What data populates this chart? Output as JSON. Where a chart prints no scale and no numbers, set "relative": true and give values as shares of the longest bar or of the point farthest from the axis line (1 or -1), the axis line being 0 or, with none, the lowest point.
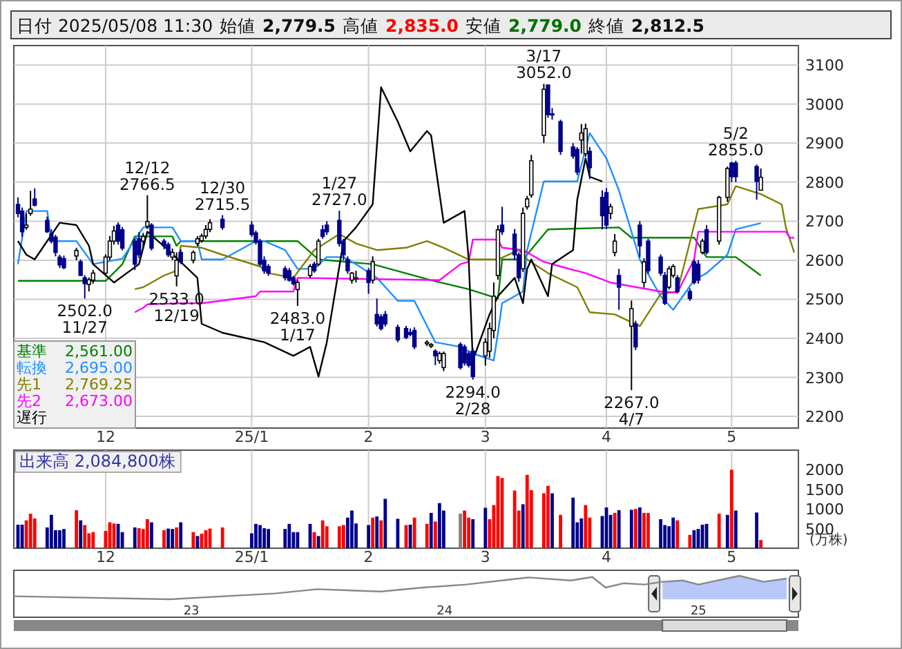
{
  "chart_data": [
    {
      "type": "candlestick",
      "xlim": [
        "2024-11-10",
        "2025-05-17"
      ],
      "ylim": [
        2170,
        3150
      ],
      "grid": true,
      "legend": "bottom left",
      "xticks": [
        {
          "value": "2024-12-02",
          "label": "12"
        },
        {
          "value": "2025-01-06",
          "label": "25/1"
        },
        {
          "value": "2025-02-03",
          "label": "2"
        },
        {
          "value": "2025-03-03",
          "label": "3"
        },
        {
          "value": "2025-04-01",
          "label": "4"
        },
        {
          "value": "2025-05-01",
          "label": "5"
        }
      ],
      "yticks": [
        2200,
        2300,
        2400,
        2500,
        2600,
        2700,
        2800,
        2900,
        3000,
        3100
      ],
      "x": [
        "2024-11-11",
        "2024-11-12",
        "2024-11-13",
        "2024-11-14",
        "2024-11-15",
        "2024-11-18",
        "2024-11-19",
        "2024-11-20",
        "2024-11-21",
        "2024-11-22",
        "2024-11-25",
        "2024-11-26",
        "2024-11-27",
        "2024-11-28",
        "2024-11-29",
        "2024-12-02",
        "2024-12-03",
        "2024-12-04",
        "2024-12-05",
        "2024-12-06",
        "2024-12-09",
        "2024-12-10",
        "2024-12-11",
        "2024-12-12",
        "2024-12-13",
        "2024-12-16",
        "2024-12-17",
        "2024-12-18",
        "2024-12-19",
        "2024-12-20",
        "2024-12-23",
        "2024-12-24",
        "2024-12-25",
        "2024-12-26",
        "2024-12-27",
        "2024-12-30",
        "2025-01-06",
        "2025-01-07",
        "2025-01-08",
        "2025-01-09",
        "2025-01-10",
        "2025-01-14",
        "2025-01-15",
        "2025-01-16",
        "2025-01-17",
        "2025-01-20",
        "2025-01-21",
        "2025-01-22",
        "2025-01-23",
        "2025-01-24",
        "2025-01-27",
        "2025-01-28",
        "2025-01-29",
        "2025-01-30",
        "2025-01-31",
        "2025-02-03",
        "2025-02-04",
        "2025-02-05",
        "2025-02-06",
        "2025-02-07",
        "2025-02-10",
        "2025-02-12",
        "2025-02-13",
        "2025-02-14",
        "2025-02-17",
        "2025-02-18",
        "2025-02-19",
        "2025-02-20",
        "2025-02-21",
        "2025-02-25",
        "2025-02-26",
        "2025-02-27",
        "2025-02-28",
        "2025-03-03",
        "2025-03-04",
        "2025-03-05",
        "2025-03-06",
        "2025-03-07",
        "2025-03-10",
        "2025-03-11",
        "2025-03-12",
        "2025-03-13",
        "2025-03-14",
        "2025-03-17",
        "2025-03-18",
        "2025-03-19",
        "2025-03-21",
        "2025-03-24",
        "2025-03-25",
        "2025-03-26",
        "2025-03-27",
        "2025-03-28",
        "2025-03-31",
        "2025-04-01",
        "2025-04-02",
        "2025-04-03",
        "2025-04-04",
        "2025-04-07",
        "2025-04-08",
        "2025-04-09",
        "2025-04-10",
        "2025-04-11",
        "2025-04-14",
        "2025-04-15",
        "2025-04-16",
        "2025-04-17",
        "2025-04-18",
        "2025-04-21",
        "2025-04-22",
        "2025-04-23",
        "2025-04-24",
        "2025-04-25",
        "2025-04-28",
        "2025-04-30",
        "2025-05-01",
        "2025-05-02",
        "2025-05-07",
        "2025-05-08"
      ],
      "ohlc": [
        [
          2743,
          2761,
          2710,
          2720
        ],
        [
          2726,
          2735,
          2660,
          2673
        ],
        [
          2684,
          2720,
          2678,
          2690
        ],
        [
          2720,
          2778,
          2714,
          2731
        ],
        [
          2757,
          2784,
          2738,
          2741
        ],
        [
          2702,
          2712,
          2670,
          2673
        ],
        [
          2667,
          2679,
          2643,
          2649
        ],
        [
          2659,
          2665,
          2610,
          2620
        ],
        [
          2608,
          2614,
          2580,
          2588
        ],
        [
          2604,
          2612,
          2577,
          2581
        ],
        [
          2611,
          2632,
          2600,
          2625
        ],
        [
          2596,
          2602,
          2560,
          2561
        ],
        [
          2555,
          2562,
          2502,
          2540
        ],
        [
          2538,
          2556,
          2520,
          2550
        ],
        [
          2549,
          2575,
          2540,
          2567
        ],
        [
          2567,
          2615,
          2560,
          2608
        ],
        [
          2608,
          2662,
          2600,
          2649
        ],
        [
          2649,
          2688,
          2640,
          2675
        ],
        [
          2690,
          2697,
          2640,
          2649
        ],
        [
          2678,
          2685,
          2625,
          2631
        ],
        [
          2649,
          2655,
          2575,
          2590
        ],
        [
          2655,
          2672,
          2605,
          2614
        ],
        [
          2649,
          2670,
          2630,
          2661
        ],
        [
          2687,
          2766.5,
          2680,
          2699
        ],
        [
          2690,
          2695,
          2625,
          2631
        ],
        [
          2649,
          2655,
          2628,
          2637
        ],
        [
          2640,
          2646,
          2608,
          2614
        ],
        [
          2608,
          2630,
          2600,
          2620
        ],
        [
          2560,
          2620,
          2533,
          2600
        ],
        [
          2620,
          2628,
          2590,
          2596
        ],
        [
          2600,
          2625,
          2592,
          2620
        ],
        [
          2643,
          2662,
          2636,
          2655
        ],
        [
          2650,
          2668,
          2645,
          2662
        ],
        [
          2662,
          2690,
          2655,
          2679
        ],
        [
          2679,
          2705,
          2672,
          2696
        ],
        [
          2705,
          2715.5,
          2678,
          2684
        ],
        [
          2690,
          2700,
          2660,
          2666
        ],
        [
          2670,
          2676,
          2640,
          2646
        ],
        [
          2649,
          2655,
          2585,
          2590
        ],
        [
          2600,
          2610,
          2565,
          2573
        ],
        [
          2584,
          2590,
          2560,
          2567
        ],
        [
          2578,
          2585,
          2548,
          2555
        ],
        [
          2573,
          2580,
          2545,
          2549
        ],
        [
          2555,
          2560,
          2535,
          2540
        ],
        [
          2525,
          2550,
          2483,
          2543
        ],
        [
          2561,
          2590,
          2555,
          2584
        ],
        [
          2590,
          2596,
          2568,
          2573
        ],
        [
          2590,
          2655,
          2585,
          2649
        ],
        [
          2678,
          2690,
          2655,
          2661
        ],
        [
          2690,
          2700,
          2665,
          2673
        ],
        [
          2702,
          2727,
          2635,
          2643
        ],
        [
          2649,
          2655,
          2600,
          2614
        ],
        [
          2602,
          2610,
          2565,
          2573
        ],
        [
          2549,
          2570,
          2540,
          2567
        ],
        [
          2552,
          2573,
          2543,
          2555
        ],
        [
          2573,
          2580,
          2514,
          2543
        ],
        [
          2549,
          2610,
          2540,
          2596
        ],
        [
          2461,
          2502,
          2430,
          2437
        ],
        [
          2455,
          2462,
          2420,
          2425
        ],
        [
          2461,
          2470,
          2430,
          2437
        ],
        [
          2428,
          2435,
          2390,
          2396
        ],
        [
          2425,
          2432,
          2398,
          2402
        ],
        [
          2415,
          2425,
          2405,
          2410
        ],
        [
          2420,
          2428,
          2372,
          2378
        ],
        [
          2386,
          2395,
          2380,
          2390
        ],
        [
          2380,
          2388,
          2375,
          2384
        ],
        [
          2367,
          2372,
          2331,
          2355
        ],
        [
          2343,
          2366,
          2335,
          2361
        ],
        [
          2325,
          2366,
          2316,
          2361
        ],
        [
          2384,
          2390,
          2320,
          2325
        ],
        [
          2378,
          2384,
          2330,
          2337
        ],
        [
          2361,
          2367,
          2325,
          2331
        ],
        [
          2367,
          2375,
          2294,
          2302
        ],
        [
          2355,
          2400,
          2330,
          2390
        ],
        [
          2367,
          2440,
          2350,
          2425
        ],
        [
          2420,
          2543,
          2400,
          2508
        ],
        [
          2561,
          2690,
          2550,
          2678
        ],
        [
          2690,
          2737,
          2665,
          2673
        ],
        [
          2667,
          2680,
          2600,
          2614
        ],
        [
          2614,
          2620,
          2545,
          2555
        ],
        [
          2578,
          2735,
          2570,
          2720
        ],
        [
          2737,
          2765,
          2730,
          2757
        ],
        [
          2767,
          2870,
          2760,
          2855
        ],
        [
          2920,
          3052,
          2900,
          3038
        ],
        [
          3049,
          3049,
          2965,
          2973
        ],
        [
          2975,
          2990,
          2960,
          2973
        ],
        [
          2955,
          2960,
          2870,
          2879
        ],
        [
          2890,
          2900,
          2860,
          2867
        ],
        [
          2884,
          2890,
          2818,
          2826
        ],
        [
          2908,
          2949,
          2873,
          2926
        ],
        [
          2873,
          2950,
          2865,
          2937
        ],
        [
          2879,
          2890,
          2808,
          2837
        ],
        [
          2761,
          2779,
          2679,
          2714
        ],
        [
          2773,
          2785,
          2680,
          2690
        ],
        [
          2720,
          2745,
          2705,
          2737
        ],
        [
          2620,
          2667,
          2610,
          2649
        ],
        [
          2561,
          2578,
          2473,
          2531
        ],
        [
          2431,
          2497,
          2267,
          2476
        ],
        [
          2437,
          2445,
          2370,
          2378
        ],
        [
          2690,
          2700,
          2608,
          2637
        ],
        [
          2543,
          2605,
          2530,
          2596
        ],
        [
          2649,
          2655,
          2565,
          2573
        ],
        [
          2608,
          2615,
          2560,
          2567
        ],
        [
          2561,
          2570,
          2485,
          2490
        ],
        [
          2531,
          2585,
          2525,
          2578
        ],
        [
          2561,
          2590,
          2555,
          2584
        ],
        [
          2555,
          2562,
          2515,
          2520
        ],
        [
          2520,
          2528,
          2496,
          2502
        ],
        [
          2596,
          2602,
          2538,
          2543
        ],
        [
          2590,
          2600,
          2540,
          2549
        ],
        [
          2620,
          2655,
          2615,
          2649
        ],
        [
          2678,
          2690,
          2615,
          2620
        ],
        [
          2649,
          2765,
          2640,
          2761
        ],
        [
          2761,
          2840,
          2750,
          2835
        ],
        [
          2849,
          2852,
          2800,
          2814
        ],
        [
          2849,
          2855,
          2800,
          2814
        ],
        [
          2840,
          2845,
          2755,
          2802
        ],
        [
          2779.5,
          2835,
          2779,
          2812.5
        ]
      ],
      "series": [
        {
          "type": "line",
          "name": "基準",
          "color": "#008000",
          "x": [
            "2024-11-11",
            "2024-12-02",
            "2024-12-06",
            "2024-12-09",
            "2024-12-18",
            "2024-12-19",
            "2024-12-20",
            "2025-01-17",
            "2025-01-22",
            "2025-02-04",
            "2025-02-18",
            "2025-02-27",
            "2025-03-06",
            "2025-03-07",
            "2025-03-12",
            "2025-03-18",
            "2025-04-04",
            "2025-04-07",
            "2025-04-22",
            "2025-04-25",
            "2025-05-02",
            "2025-05-08"
          ],
          "values": [
            2547,
            2547,
            2590,
            2661,
            2661,
            2637,
            2649,
            2649,
            2602,
            2590,
            2549,
            2526,
            2502,
            2602,
            2602,
            2679,
            2684,
            2658,
            2658,
            2608,
            2608,
            2561
          ]
        },
        {
          "type": "line",
          "name": "転換",
          "color": "#1e90ff",
          "x": [
            "2024-11-11",
            "2024-11-13",
            "2024-11-18",
            "2024-11-19",
            "2024-11-25",
            "2024-11-29",
            "2024-12-06",
            "2024-12-11",
            "2024-12-18",
            "2024-12-20",
            "2024-12-24",
            "2024-12-25",
            "2024-12-30",
            "2025-01-07",
            "2025-01-09",
            "2025-01-14",
            "2025-01-17",
            "2025-01-21",
            "2025-01-24",
            "2025-01-28",
            "2025-01-31",
            "2025-02-05",
            "2025-02-10",
            "2025-02-14",
            "2025-02-19",
            "2025-02-25",
            "2025-02-28",
            "2025-03-05",
            "2025-03-06",
            "2025-03-07",
            "2025-03-12",
            "2025-03-13",
            "2025-03-17",
            "2025-03-25",
            "2025-03-28",
            "2025-04-01",
            "2025-04-04",
            "2025-04-09",
            "2025-04-14",
            "2025-04-17",
            "2025-04-22",
            "2025-04-25",
            "2025-04-30",
            "2025-05-02",
            "2025-05-08"
          ],
          "values": [
            2590,
            2726,
            2726,
            2649,
            2649,
            2590,
            2604,
            2684,
            2684,
            2649,
            2649,
            2602,
            2602,
            2649,
            2649,
            2626,
            2578,
            2578,
            2608,
            2608,
            2590,
            2555,
            2496,
            2496,
            2390,
            2378,
            2361,
            2343,
            2414,
            2490,
            2520,
            2626,
            2802,
            2802,
            2926,
            2861,
            2779,
            2602,
            2508,
            2473,
            2549,
            2567,
            2614,
            2679,
            2695
          ]
        },
        {
          "type": "line",
          "name": "先1",
          "color": "#808000",
          "x": [
            "2024-12-09",
            "2024-12-11",
            "2024-12-16",
            "2024-12-19",
            "2024-12-20",
            "2024-12-25",
            "2024-12-30",
            "2025-01-08",
            "2025-01-10",
            "2025-01-16",
            "2025-01-21",
            "2025-01-27",
            "2025-01-31",
            "2025-02-05",
            "2025-02-12",
            "2025-02-17",
            "2025-02-21",
            "2025-02-27",
            "2025-03-06",
            "2025-03-11",
            "2025-03-13",
            "2025-03-18",
            "2025-03-25",
            "2025-03-28",
            "2025-04-03",
            "2025-04-09",
            "2025-04-14",
            "2025-04-18",
            "2025-04-23",
            "2025-04-30",
            "2025-05-02",
            "2025-05-08",
            "2025-05-13",
            "2025-05-14",
            "2025-05-16"
          ],
          "values": [
            2526,
            2531,
            2561,
            2573,
            2637,
            2632,
            2614,
            2584,
            2567,
            2555,
            2626,
            2667,
            2643,
            2626,
            2632,
            2649,
            2632,
            2602,
            2602,
            2626,
            2602,
            2567,
            2531,
            2467,
            2461,
            2431,
            2514,
            2520,
            2731,
            2743,
            2790,
            2769.25,
            2743,
            2684,
            2620
          ]
        },
        {
          "type": "line",
          "name": "先2",
          "color": "#ff00ff",
          "x": [
            "2024-12-09",
            "2024-12-11",
            "2024-12-12",
            "2024-12-20",
            "2024-12-25",
            "2025-01-07",
            "2025-01-08",
            "2025-01-16",
            "2025-01-17",
            "2025-02-20",
            "2025-02-25",
            "2025-02-27",
            "2025-02-28",
            "2025-03-06",
            "2025-03-07",
            "2025-03-12",
            "2025-03-17",
            "2025-03-21",
            "2025-03-27",
            "2025-04-02",
            "2025-04-14",
            "2025-04-18",
            "2025-04-22",
            "2025-04-23",
            "2025-05-08",
            "2025-05-14",
            "2025-05-15",
            "2025-05-16"
          ],
          "values": [
            2467,
            2478,
            2487,
            2490,
            2490,
            2508,
            2520,
            2520,
            2555,
            2549,
            2590,
            2596,
            2653,
            2653,
            2632,
            2626,
            2596,
            2584,
            2567,
            2543,
            2520,
            2517,
            2602,
            2673,
            2673,
            2673,
            2658,
            2658
          ]
        },
        {
          "type": "line",
          "name": "遅行",
          "color": "#000000",
          "x": [
            "2024-11-11",
            "2024-11-13",
            "2024-11-15",
            "2024-11-21",
            "2024-11-25",
            "2024-11-28",
            "2024-11-29",
            "2024-12-04",
            "2024-12-10",
            "2024-12-12",
            "2024-12-17",
            "2024-12-24",
            "2024-12-25",
            "2024-12-30",
            "2025-01-09",
            "2025-01-16",
            "2025-01-20",
            "2025-01-22",
            "2025-01-24",
            "2025-01-28",
            "2025-01-31",
            "2025-02-04",
            "2025-02-06",
            "2025-02-10",
            "2025-02-13",
            "2025-02-17",
            "2025-02-18",
            "2025-02-21",
            "2025-02-26",
            "2025-02-27",
            "2025-02-28",
            "2025-03-04",
            "2025-03-06",
            "2025-03-10",
            "2025-03-12",
            "2025-03-13",
            "2025-03-14",
            "2025-03-18",
            "2025-03-19",
            "2025-03-24",
            "2025-03-25",
            "2025-03-27",
            "2025-03-28",
            "2025-03-31"
          ],
          "values": [
            2649,
            2614,
            2602,
            2696,
            2690,
            2637,
            2590,
            2543,
            2590,
            2673,
            2626,
            2555,
            2437,
            2414,
            2390,
            2355,
            2378,
            2302,
            2390,
            2649,
            2684,
            2743,
            3043,
            2955,
            2879,
            2931,
            2920,
            2696,
            2726,
            2602,
            2343,
            2461,
            2508,
            2555,
            2490,
            2578,
            2602,
            2508,
            2590,
            2626,
            2755,
            2861,
            2814,
            2802
          ]
        }
      ],
      "annotations": [
        "日付 2025/05/08 11:30",
        "始値",
        "2,779.5",
        "高値",
        "2,835.0",
        "安値",
        "2,779.0",
        "終値",
        "2,812.5",
        "2,561.00",
        "2,695.00",
        "2,769.25",
        "2,673.00",
        {
          "text": "2502.0 11/27",
          "x": "2024-11-27",
          "y": 2502
        },
        {
          "text": "12/12 2766.5",
          "x": "2024-12-12",
          "y": 2766.5
        },
        {
          "text": "2533.0 12/19",
          "x": "2024-12-19",
          "y": 2533
        },
        {
          "text": "12/30 2715.5",
          "x": "2024-12-30",
          "y": 2715.5
        },
        {
          "text": "2483.0 1/17",
          "x": "2025-01-17",
          "y": 2483
        },
        {
          "text": "1/27 2727.0",
          "x": "2025-01-27",
          "y": 2727
        },
        {
          "text": "2294.0 2/28",
          "x": "2025-02-28",
          "y": 2294
        },
        {
          "text": "3/17 3052.0",
          "x": "2025-03-17",
          "y": 3052
        },
        {
          "text": "2267.0 4/7",
          "x": "2025-04-07",
          "y": 2267
        },
        {
          "text": "5/2 2855.0",
          "x": "2025-05-02",
          "y": 2855
        }
      ]
    },
    {
      "type": "bar",
      "title": "出来高 2,084,800株",
      "ylabel": "(万株)",
      "grid": "x",
      "xlim": [
        "2024-11-10",
        "2025-05-17"
      ],
      "ylim": [
        0,
        2500
      ],
      "yticks": [
        500,
        1000,
        1500,
        2000
      ],
      "xticks": [
        {
          "value": "2024-12-02",
          "label": "12"
        },
        {
          "value": "2025-01-06",
          "label": "25/1"
        },
        {
          "value": "2025-02-03",
          "label": "2"
        },
        {
          "value": "2025-03-03",
          "label": "3"
        },
        {
          "value": "2025-04-01",
          "label": "4"
        },
        {
          "value": "2025-05-01",
          "label": "5"
        }
      ],
      "x": [
        "2024-11-11",
        "2024-11-12",
        "2024-11-13",
        "2024-11-14",
        "2024-11-15",
        "2024-11-18",
        "2024-11-19",
        "2024-11-20",
        "2024-11-21",
        "2024-11-22",
        "2024-11-25",
        "2024-11-26",
        "2024-11-27",
        "2024-11-28",
        "2024-11-29",
        "2024-12-02",
        "2024-12-03",
        "2024-12-04",
        "2024-12-05",
        "2024-12-06",
        "2024-12-09",
        "2024-12-10",
        "2024-12-11",
        "2024-12-12",
        "2024-12-13",
        "2024-12-16",
        "2024-12-17",
        "2024-12-18",
        "2024-12-19",
        "2024-12-20",
        "2024-12-23",
        "2024-12-24",
        "2024-12-25",
        "2024-12-26",
        "2024-12-27",
        "2024-12-30",
        "2025-01-06",
        "2025-01-07",
        "2025-01-08",
        "2025-01-09",
        "2025-01-10",
        "2025-01-14",
        "2025-01-15",
        "2025-01-16",
        "2025-01-17",
        "2025-01-20",
        "2025-01-21",
        "2025-01-22",
        "2025-01-23",
        "2025-01-24",
        "2025-01-27",
        "2025-01-28",
        "2025-01-29",
        "2025-01-30",
        "2025-01-31",
        "2025-02-03",
        "2025-02-04",
        "2025-02-05",
        "2025-02-06",
        "2025-02-07",
        "2025-02-10",
        "2025-02-12",
        "2025-02-13",
        "2025-02-14",
        "2025-02-17",
        "2025-02-18",
        "2025-02-19",
        "2025-02-20",
        "2025-02-21",
        "2025-02-25",
        "2025-02-26",
        "2025-02-27",
        "2025-02-28",
        "2025-03-03",
        "2025-03-04",
        "2025-03-05",
        "2025-03-06",
        "2025-03-07",
        "2025-03-10",
        "2025-03-11",
        "2025-03-12",
        "2025-03-13",
        "2025-03-14",
        "2025-03-17",
        "2025-03-18",
        "2025-03-19",
        "2025-03-21",
        "2025-03-24",
        "2025-03-25",
        "2025-03-26",
        "2025-03-27",
        "2025-03-28",
        "2025-03-31",
        "2025-04-01",
        "2025-04-02",
        "2025-04-03",
        "2025-04-04",
        "2025-04-07",
        "2025-04-08",
        "2025-04-09",
        "2025-04-10",
        "2025-04-11",
        "2025-04-14",
        "2025-04-15",
        "2025-04-16",
        "2025-04-17",
        "2025-04-18",
        "2025-04-21",
        "2025-04-22",
        "2025-04-23",
        "2025-04-24",
        "2025-04-25",
        "2025-04-28",
        "2025-04-30",
        "2025-05-01",
        "2025-05-02",
        "2025-05-07",
        "2025-05-08"
      ],
      "values": [
        600,
        600,
        710,
        880,
        760,
        530,
        850,
        460,
        460,
        490,
        970,
        710,
        590,
        380,
        410,
        440,
        660,
        630,
        620,
        410,
        530,
        510,
        490,
        740,
        660,
        460,
        500,
        490,
        530,
        660,
        410,
        310,
        370,
        460,
        500,
        530,
        380,
        620,
        590,
        510,
        490,
        490,
        620,
        410,
        410,
        620,
        410,
        310,
        710,
        560,
        560,
        590,
        780,
        960,
        630,
        590,
        780,
        810,
        710,
        1260,
        750,
        590,
        600,
        780,
        620,
        900,
        680,
        1150,
        960,
        880,
        960,
        780,
        740,
        1030,
        740,
        1100,
        1840,
        1790,
        1470,
        960,
        1120,
        1870,
        1480,
        1400,
        1590,
        1400,
        850,
        1290,
        660,
        760,
        1100,
        780,
        820,
        1040,
        850,
        900,
        970,
        980,
        1000,
        1040,
        900,
        900,
        740,
        590,
        560,
        780,
        710,
        340,
        460,
        490,
        600,
        620,
        880,
        850,
        2000,
        960,
        910,
        208.5
      ],
      "colors": [
        "#00008b",
        "#00008b",
        "#ff0000",
        "#ff0000",
        "#ff0000",
        "#00008b",
        "#00008b",
        "#00008b",
        "#00008b",
        "#00008b",
        "#ff0000",
        "#00008b",
        "#ff0000",
        "#ff0000",
        "#ff0000",
        "#ff0000",
        "#ff0000",
        "#ff0000",
        "#00008b",
        "#00008b",
        "#00008b",
        "#ff0000",
        "#ff0000",
        "#ff0000",
        "#00008b",
        "#ff0000",
        "#00008b",
        "#00008b",
        "#ff0000",
        "#00008b",
        "#ff0000",
        "#00008b",
        "#ff0000",
        "#ff0000",
        "#ff0000",
        "#ff0000",
        "#00008b",
        "#00008b",
        "#00008b",
        "#00008b",
        "#00008b",
        "#00008b",
        "#00008b",
        "#00008b",
        "#00008b",
        "#00008b",
        "#ff0000",
        "#00008b",
        "#ff0000",
        "#ff0000",
        "#ff0000",
        "#ff0000",
        "#00008b",
        "#00008b",
        "#00008b",
        "#00008b",
        "#ff0000",
        "#00008b",
        "#ff0000",
        "#00008b",
        "#00008b",
        "#ff0000",
        "#00008b",
        "#ff0000",
        "#ff0000",
        "#00008b",
        "#ff0000",
        "#00008b",
        "#00008b",
        "#808080",
        "#ff0000",
        "#ff0000",
        "#00008b",
        "#00008b",
        "#ff0000",
        "#ff0000",
        "#ff0000",
        "#ff0000",
        "#ff0000",
        "#ff0000",
        "#00008b",
        "#ff0000",
        "#ff0000",
        "#ff0000",
        "#ff0000",
        "#00008b",
        "#ff0000",
        "#00008b",
        "#00008b",
        "#00008b",
        "#ff0000",
        "#ff0000",
        "#00008b",
        "#00008b",
        "#00008b",
        "#ff0000",
        "#00008b",
        "#00008b",
        "#ff0000",
        "#00008b",
        "#ff0000",
        "#ff0000",
        "#00008b",
        "#00008b",
        "#00008b",
        "#00008b",
        "#ff0000",
        "#ff0000",
        "#00008b",
        "#00008b",
        "#00008b",
        "#00008b",
        "#ff0000",
        "#00008b",
        "#ff0000",
        "#00008b",
        "#00008b",
        "#ff0000"
      ]
    },
    {
      "type": "line",
      "relative": true,
      "xlim": [
        "2022-04-20",
        "2025-05-25"
      ],
      "xticks": [
        {
          "value": "2023-01-01",
          "label": "23"
        },
        {
          "value": "2024-01-01",
          "label": "24"
        },
        {
          "value": "2025-01-01",
          "label": "25"
        }
      ],
      "series": [
        {
          "type": "area",
          "color": "#b8c8f8",
          "x": [
            "2024-11-10",
            "2024-12-10",
            "2025-01-01",
            "2025-02-10",
            "2025-03-01",
            "2025-04-05",
            "2025-05-08"
          ],
          "values": [
            0.75,
            0.8,
            0.63,
            0.88,
            1,
            0.75,
            0.88
          ]
        },
        {
          "type": "line",
          "color": "#888888",
          "x": [
            "2022-04-20",
            "2022-12-01",
            "2023-05-01",
            "2023-07-01",
            "2023-10-01",
            "2023-12-01",
            "2024-02-01",
            "2024-04-01",
            "2024-05-01",
            "2024-07-01",
            "2024-08-01",
            "2024-08-20",
            "2024-09-15",
            "2024-10-15",
            "2024-11-10",
            "2024-12-10",
            "2025-01-01",
            "2025-02-10",
            "2025-03-01",
            "2025-04-05",
            "2025-05-08"
          ],
          "values": [
            0.13,
            0,
            0.25,
            0.43,
            0.33,
            0.5,
            0.63,
            0.83,
            0.93,
            0.8,
            0.95,
            0.5,
            0.68,
            0.63,
            0.75,
            0.8,
            0.63,
            0.88,
            1,
            0.75,
            0.88
          ]
        }
      ]
    }
  ]
}
